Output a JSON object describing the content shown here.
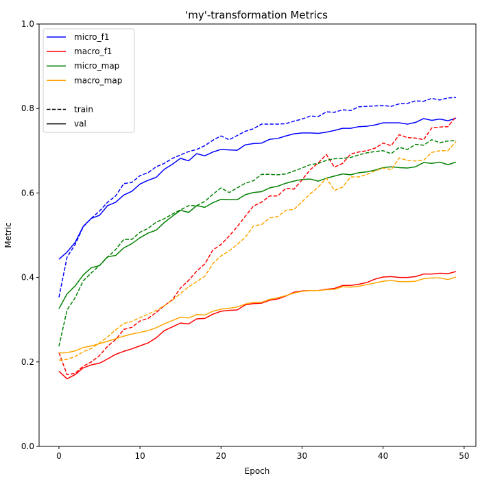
{
  "chart_data": {
    "type": "line",
    "title": "'my'-transformation Metrics",
    "xlabel": "Epoch",
    "ylabel": "Metric",
    "xlim": [
      -2.45,
      51.45
    ],
    "ylim": [
      0.0,
      1.0
    ],
    "x_ticks": [
      "0",
      "10",
      "20",
      "30",
      "40",
      "50"
    ],
    "y_ticks": [
      "0.0",
      "0.2",
      "0.4",
      "0.6",
      "0.8",
      "1.0"
    ],
    "grid": false,
    "legend_position": "top-left",
    "legend": [
      {
        "label": "micro_f1",
        "color": "#0000ff",
        "style": "solid"
      },
      {
        "label": "macro_f1",
        "color": "#ff0000",
        "style": "solid"
      },
      {
        "label": "micro_map",
        "color": "#008000",
        "style": "solid"
      },
      {
        "label": "macro_map",
        "color": "#ffa500",
        "style": "solid"
      },
      {
        "label": "",
        "color": "",
        "style": "none"
      },
      {
        "label": "train",
        "color": "#000000",
        "style": "dashed"
      },
      {
        "label": "val",
        "color": "#000000",
        "style": "solid"
      }
    ],
    "x": [
      0,
      1,
      2,
      3,
      4,
      5,
      6,
      7,
      8,
      9,
      10,
      11,
      12,
      13,
      14,
      15,
      16,
      17,
      18,
      19,
      20,
      21,
      22,
      23,
      24,
      25,
      26,
      27,
      28,
      29,
      30,
      31,
      32,
      33,
      34,
      35,
      36,
      37,
      38,
      39,
      40,
      41,
      42,
      43,
      44,
      45,
      46,
      47,
      48,
      49
    ],
    "series": [
      {
        "metric": "micro_f1",
        "split": "train",
        "color": "#0000ff",
        "dash": "dashed",
        "values": [
          0.353,
          0.448,
          0.478,
          0.52,
          0.54,
          0.557,
          0.578,
          0.593,
          0.622,
          0.625,
          0.641,
          0.648,
          0.662,
          0.67,
          0.682,
          0.69,
          0.698,
          0.703,
          0.712,
          0.725,
          0.735,
          0.726,
          0.736,
          0.746,
          0.752,
          0.763,
          0.763,
          0.763,
          0.764,
          0.77,
          0.775,
          0.782,
          0.781,
          0.792,
          0.791,
          0.797,
          0.795,
          0.804,
          0.805,
          0.806,
          0.807,
          0.805,
          0.811,
          0.812,
          0.818,
          0.817,
          0.824,
          0.82,
          0.825,
          0.826
        ]
      },
      {
        "metric": "micro_f1",
        "split": "val",
        "color": "#0000ff",
        "dash": "solid",
        "values": [
          0.443,
          0.46,
          0.483,
          0.521,
          0.54,
          0.547,
          0.57,
          0.578,
          0.595,
          0.604,
          0.621,
          0.63,
          0.637,
          0.656,
          0.668,
          0.682,
          0.676,
          0.693,
          0.688,
          0.697,
          0.703,
          0.702,
          0.701,
          0.714,
          0.717,
          0.718,
          0.727,
          0.729,
          0.735,
          0.74,
          0.742,
          0.742,
          0.741,
          0.744,
          0.748,
          0.753,
          0.753,
          0.757,
          0.758,
          0.761,
          0.766,
          0.766,
          0.766,
          0.763,
          0.767,
          0.776,
          0.772,
          0.775,
          0.771,
          0.777
        ]
      },
      {
        "metric": "macro_f1",
        "split": "train",
        "color": "#ff0000",
        "dash": "dashed",
        "values": [
          0.222,
          0.17,
          0.173,
          0.19,
          0.2,
          0.215,
          0.237,
          0.253,
          0.277,
          0.282,
          0.297,
          0.303,
          0.317,
          0.333,
          0.347,
          0.375,
          0.393,
          0.415,
          0.432,
          0.465,
          0.478,
          0.498,
          0.52,
          0.545,
          0.569,
          0.578,
          0.593,
          0.593,
          0.611,
          0.609,
          0.631,
          0.655,
          0.671,
          0.691,
          0.661,
          0.67,
          0.692,
          0.697,
          0.7,
          0.706,
          0.718,
          0.712,
          0.738,
          0.731,
          0.73,
          0.726,
          0.754,
          0.756,
          0.757,
          0.781
        ]
      },
      {
        "metric": "macro_f1",
        "split": "val",
        "color": "#ff0000",
        "dash": "solid",
        "values": [
          0.178,
          0.16,
          0.17,
          0.186,
          0.193,
          0.197,
          0.207,
          0.218,
          0.225,
          0.231,
          0.238,
          0.245,
          0.257,
          0.274,
          0.283,
          0.292,
          0.29,
          0.302,
          0.303,
          0.313,
          0.32,
          0.322,
          0.323,
          0.335,
          0.338,
          0.339,
          0.346,
          0.349,
          0.356,
          0.365,
          0.368,
          0.369,
          0.369,
          0.372,
          0.374,
          0.381,
          0.381,
          0.384,
          0.388,
          0.396,
          0.401,
          0.402,
          0.4,
          0.4,
          0.402,
          0.408,
          0.408,
          0.41,
          0.409,
          0.414
        ]
      },
      {
        "metric": "micro_map",
        "split": "train",
        "color": "#008000",
        "dash": "dashed",
        "values": [
          0.237,
          0.323,
          0.352,
          0.392,
          0.411,
          0.428,
          0.448,
          0.466,
          0.49,
          0.49,
          0.507,
          0.516,
          0.531,
          0.539,
          0.55,
          0.56,
          0.57,
          0.57,
          0.58,
          0.597,
          0.612,
          0.601,
          0.612,
          0.623,
          0.629,
          0.644,
          0.644,
          0.643,
          0.645,
          0.652,
          0.659,
          0.667,
          0.67,
          0.677,
          0.681,
          0.682,
          0.684,
          0.69,
          0.695,
          0.698,
          0.7,
          0.693,
          0.708,
          0.703,
          0.715,
          0.713,
          0.726,
          0.719,
          0.723,
          0.724
        ]
      },
      {
        "metric": "micro_map",
        "split": "val",
        "color": "#008000",
        "dash": "solid",
        "values": [
          0.326,
          0.361,
          0.38,
          0.406,
          0.423,
          0.428,
          0.449,
          0.452,
          0.47,
          0.48,
          0.494,
          0.505,
          0.512,
          0.53,
          0.545,
          0.559,
          0.554,
          0.57,
          0.566,
          0.577,
          0.585,
          0.584,
          0.584,
          0.596,
          0.601,
          0.603,
          0.612,
          0.616,
          0.623,
          0.628,
          0.632,
          0.633,
          0.628,
          0.635,
          0.64,
          0.645,
          0.643,
          0.648,
          0.65,
          0.654,
          0.66,
          0.662,
          0.66,
          0.659,
          0.662,
          0.672,
          0.67,
          0.673,
          0.667,
          0.673
        ]
      },
      {
        "metric": "macro_map",
        "split": "train",
        "color": "#ffa500",
        "dash": "dashed",
        "values": [
          0.204,
          0.206,
          0.213,
          0.224,
          0.232,
          0.245,
          0.259,
          0.276,
          0.291,
          0.296,
          0.305,
          0.313,
          0.322,
          0.333,
          0.346,
          0.362,
          0.378,
          0.39,
          0.403,
          0.433,
          0.451,
          0.463,
          0.478,
          0.495,
          0.522,
          0.525,
          0.541,
          0.544,
          0.559,
          0.561,
          0.579,
          0.598,
          0.614,
          0.635,
          0.606,
          0.614,
          0.638,
          0.638,
          0.644,
          0.652,
          0.659,
          0.655,
          0.683,
          0.677,
          0.676,
          0.677,
          0.696,
          0.7,
          0.7,
          0.722
        ]
      },
      {
        "metric": "macro_map",
        "split": "val",
        "color": "#ffa500",
        "dash": "solid",
        "values": [
          0.221,
          0.222,
          0.226,
          0.234,
          0.238,
          0.243,
          0.249,
          0.255,
          0.261,
          0.266,
          0.27,
          0.274,
          0.281,
          0.29,
          0.298,
          0.306,
          0.304,
          0.312,
          0.311,
          0.32,
          0.325,
          0.327,
          0.33,
          0.337,
          0.341,
          0.341,
          0.348,
          0.352,
          0.357,
          0.363,
          0.367,
          0.369,
          0.369,
          0.371,
          0.372,
          0.378,
          0.377,
          0.379,
          0.383,
          0.387,
          0.391,
          0.393,
          0.39,
          0.39,
          0.391,
          0.397,
          0.399,
          0.399,
          0.395,
          0.401
        ]
      }
    ]
  }
}
